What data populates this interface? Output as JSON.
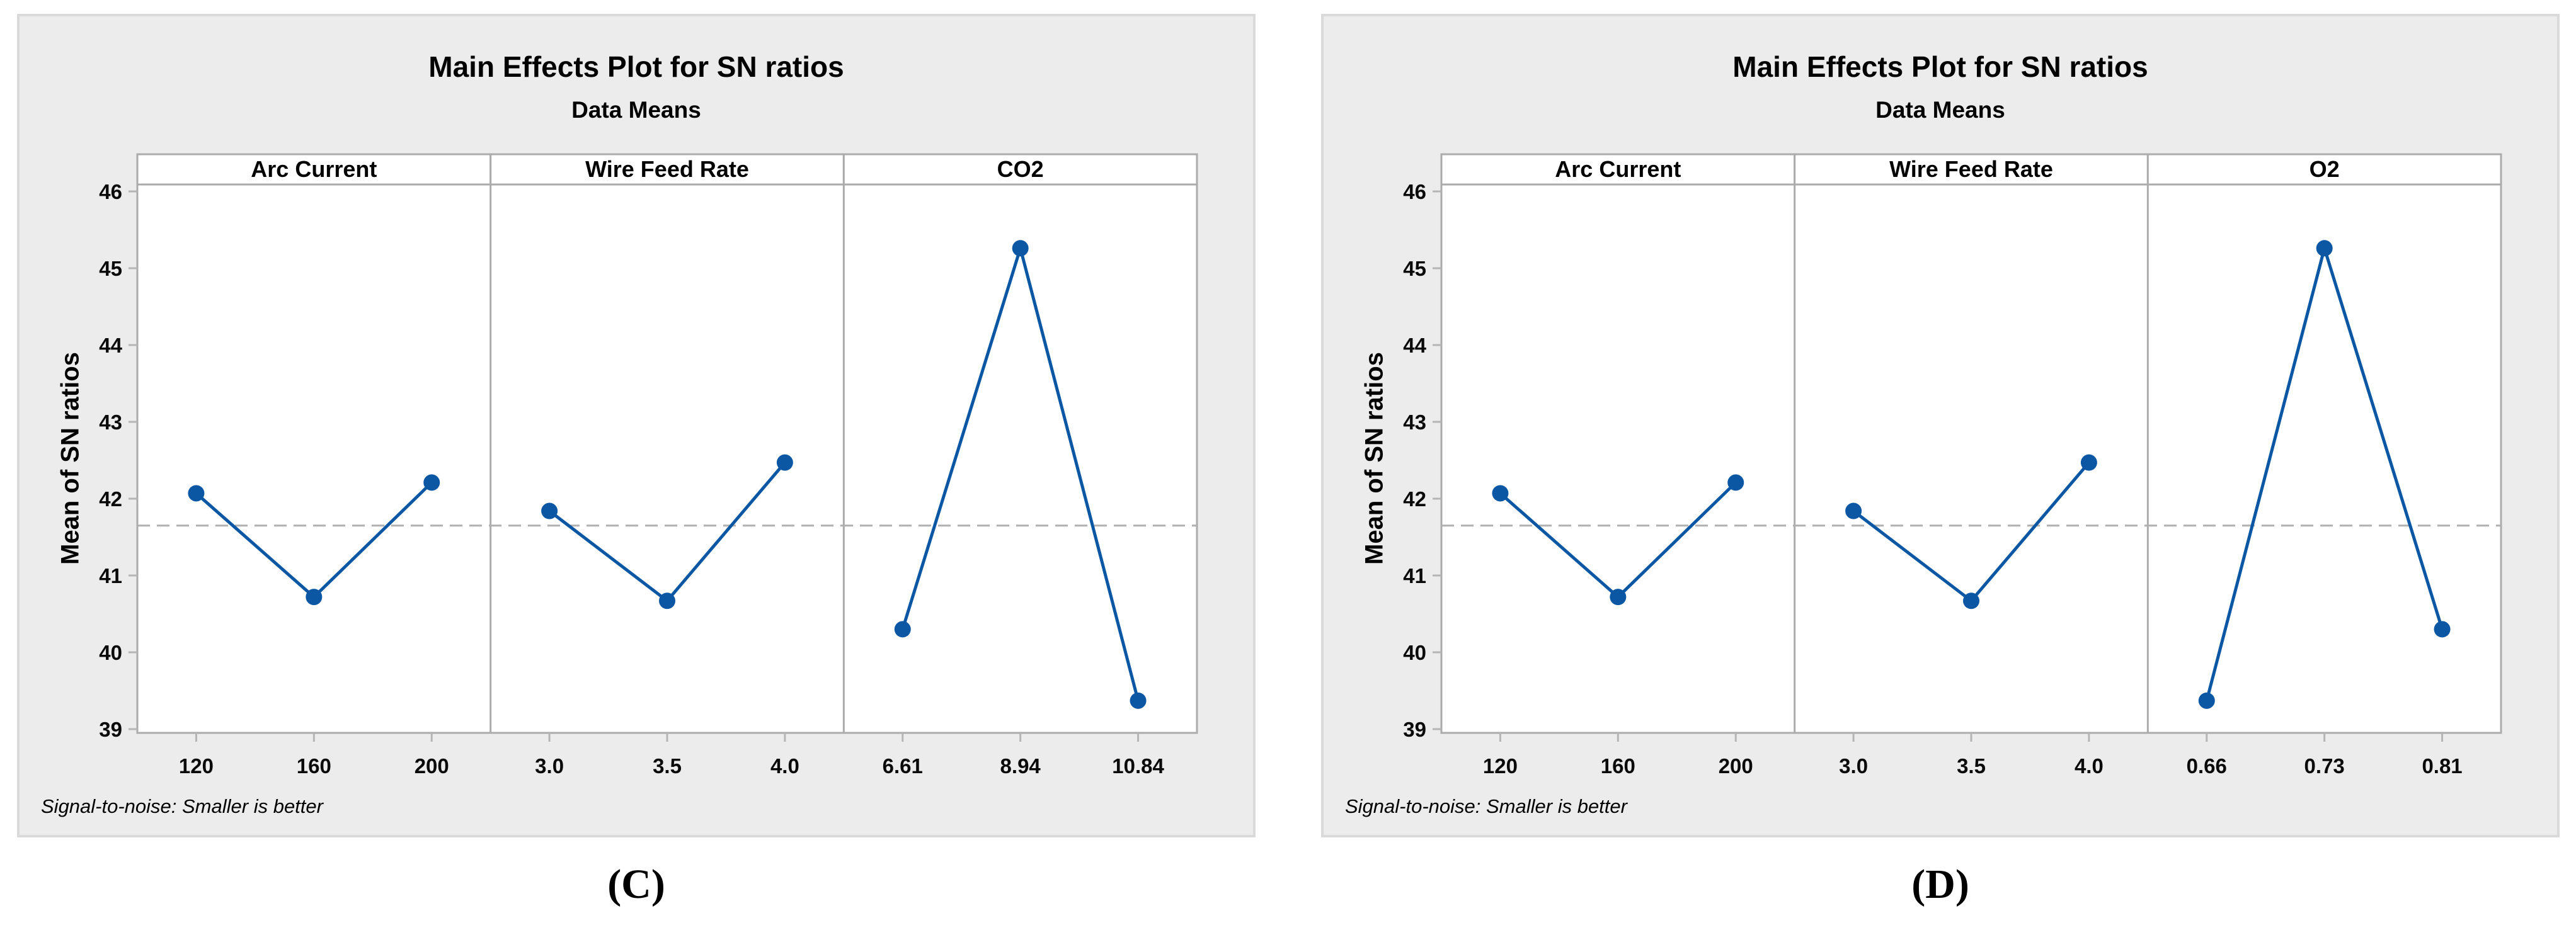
{
  "page": {
    "background": "#ffffff"
  },
  "colors": {
    "panel_bg": "#ececec",
    "panel_border": "#dadada",
    "plot_bg": "#ffffff",
    "plot_border": "#ababab",
    "tick": "#b5b5b5",
    "dashed_line": "#b0b0b0",
    "series_line": "#0b57a4",
    "text": "#000000"
  },
  "chart_data": [
    {
      "id": "C",
      "type": "line",
      "caption": "(C)",
      "title": "Main Effects Plot for SN ratios",
      "subtitle": "Data Means",
      "ylabel": "Mean of SN ratios",
      "footnote": "Signal-to-noise: Smaller is better",
      "ylim": [
        39,
        46
      ],
      "yticks": [
        46,
        45,
        44,
        43,
        42,
        41,
        40,
        39
      ],
      "reference_line_mean": 41.65,
      "grid": "off",
      "legend": "none",
      "factors": [
        {
          "name": "Arc Current",
          "levels": [
            "120",
            "160",
            "200"
          ],
          "values": [
            42.07,
            40.72,
            42.21
          ]
        },
        {
          "name": "Wire Feed Rate",
          "levels": [
            "3.0",
            "3.5",
            "4.0"
          ],
          "values": [
            41.84,
            40.67,
            42.47
          ]
        },
        {
          "name": "CO2",
          "levels": [
            "6.61",
            "8.94",
            "10.84"
          ],
          "values": [
            40.3,
            45.26,
            39.37
          ]
        }
      ]
    },
    {
      "id": "D",
      "type": "line",
      "caption": "(D)",
      "title": "Main Effects Plot for SN ratios",
      "subtitle": "Data Means",
      "ylabel": "Mean of SN ratios",
      "footnote": "Signal-to-noise: Smaller is better",
      "ylim": [
        39,
        46
      ],
      "yticks": [
        46,
        45,
        44,
        43,
        42,
        41,
        40,
        39
      ],
      "reference_line_mean": 41.65,
      "grid": "off",
      "legend": "none",
      "factors": [
        {
          "name": "Arc Current",
          "levels": [
            "120",
            "160",
            "200"
          ],
          "values": [
            42.07,
            40.72,
            42.21
          ]
        },
        {
          "name": "Wire Feed Rate",
          "levels": [
            "3.0",
            "3.5",
            "4.0"
          ],
          "values": [
            41.84,
            40.67,
            42.47
          ]
        },
        {
          "name": "O2",
          "levels": [
            "0.66",
            "0.73",
            "0.81"
          ],
          "values": [
            39.37,
            45.26,
            40.3
          ]
        }
      ]
    }
  ]
}
